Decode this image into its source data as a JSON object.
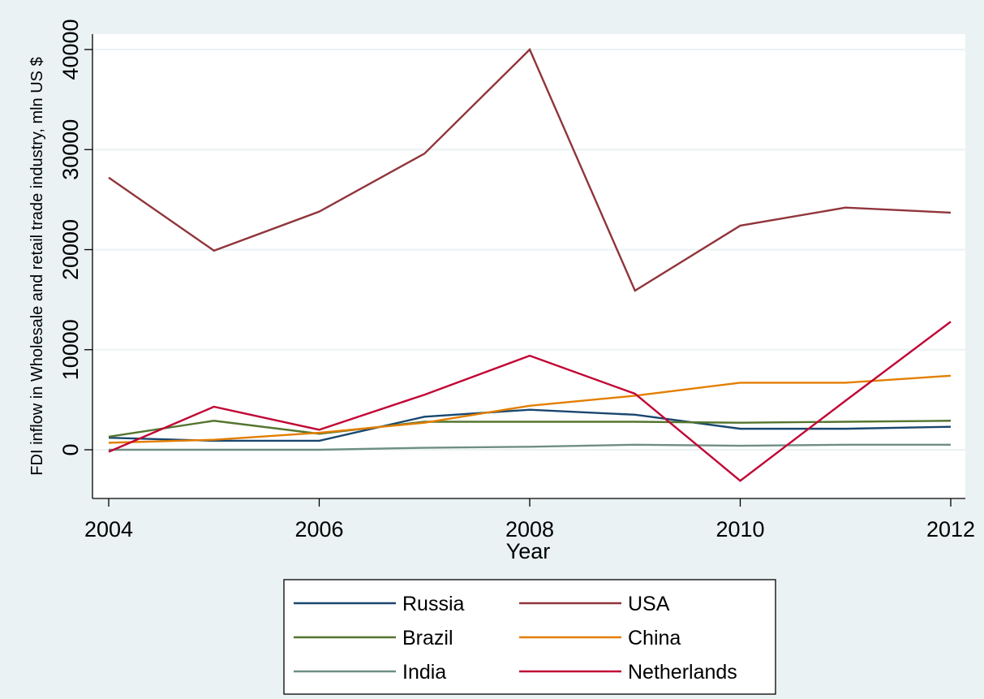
{
  "chart_data": {
    "type": "line",
    "title": "",
    "xlabel": "Year",
    "ylabel": "FDI inflow in Wholesale and retail trade industry, mln US $",
    "x": [
      2004,
      2005,
      2006,
      2007,
      2008,
      2009,
      2010,
      2011,
      2012
    ],
    "xticks": [
      2004,
      2006,
      2008,
      2010,
      2012
    ],
    "xlim": [
      2004,
      2012
    ],
    "yticks": [
      0,
      10000,
      20000,
      30000,
      40000
    ],
    "ylim": [
      -5000,
      41500
    ],
    "grid": true,
    "legend_position": "bottom",
    "series": [
      {
        "name": "Russia",
        "color": "#1a476f",
        "values": [
          1200,
          900,
          900,
          3300,
          4000,
          3500,
          2100,
          2100,
          2300
        ]
      },
      {
        "name": "USA",
        "color": "#90353b",
        "values": [
          27200,
          19900,
          23800,
          29600,
          40000,
          15900,
          22400,
          24200,
          23700
        ]
      },
      {
        "name": "Brazil",
        "color": "#55752f",
        "values": [
          1300,
          2900,
          1600,
          2800,
          2800,
          2800,
          2700,
          2800,
          2900
        ]
      },
      {
        "name": "China",
        "color": "#e37e00",
        "values": [
          700,
          1000,
          1700,
          2700,
          4400,
          5400,
          6700,
          6700,
          7400
        ]
      },
      {
        "name": "India",
        "color": "#6e8e84",
        "values": [
          0,
          0,
          0,
          200,
          300,
          500,
          400,
          500,
          500
        ]
      },
      {
        "name": "Netherlands",
        "color": "#c10534",
        "values": [
          -200,
          4300,
          2000,
          5500,
          9400,
          5600,
          -3100,
          4900,
          12800
        ]
      }
    ]
  }
}
